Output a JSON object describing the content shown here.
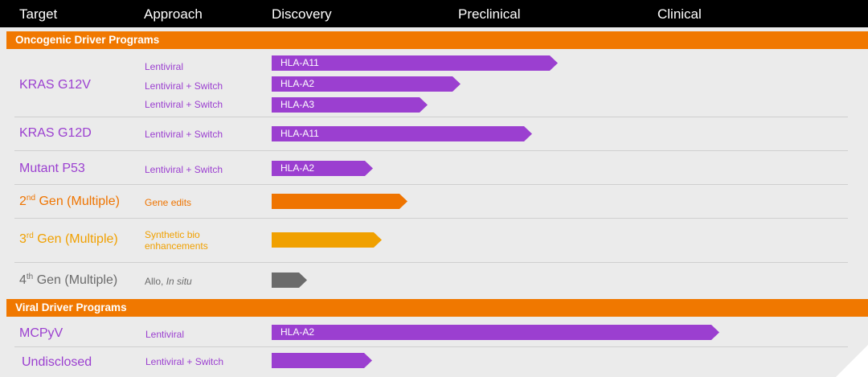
{
  "header": {
    "col_target": "Target",
    "col_approach": "Approach",
    "col_discovery": "Discovery",
    "col_preclinical": "Preclinical",
    "col_clinical": "Clinical"
  },
  "sections": {
    "oncogenic": {
      "label": "Oncogenic Driver Programs"
    },
    "viral": {
      "label": "Viral Driver Programs"
    }
  },
  "rows": {
    "kras_g12v": {
      "target": "KRAS G12V",
      "programs": [
        {
          "approach": "Lentiviral",
          "hla": "HLA-A11"
        },
        {
          "approach": "Lentiviral + Switch",
          "hla": "HLA-A2"
        },
        {
          "approach": "Lentiviral + Switch",
          "hla": "HLA-A3"
        }
      ]
    },
    "kras_g12d": {
      "target": "KRAS G12D",
      "approach": "Lentiviral + Switch",
      "hla": "HLA-A11"
    },
    "mutant_p53": {
      "target": "Mutant P53",
      "approach": "Lentiviral + Switch",
      "hla": "HLA-A2"
    },
    "gen2": {
      "ordinal": "2",
      "ordinal_suffix": "nd",
      "target_rest": " Gen (Multiple)",
      "approach": "Gene edits"
    },
    "gen3": {
      "ordinal": "3",
      "ordinal_suffix": "rd",
      "target_rest": " Gen (Multiple)",
      "approach_line1": "Synthetic bio",
      "approach_line2": "enhancements"
    },
    "gen4": {
      "ordinal": "4",
      "ordinal_suffix": "th",
      "target_rest": " Gen (Multiple)",
      "approach_prefix": "Allo, ",
      "approach_italic": "In situ"
    },
    "mcpyv": {
      "target": "MCPyV",
      "approach": "Lentiviral",
      "hla": "HLA-A2"
    },
    "undisclosed": {
      "target": "Undisclosed",
      "approach": "Lentiviral + Switch"
    }
  },
  "colors": {
    "header_bg": "#000000",
    "section_orange": "#f07800",
    "purple": "#9b3fd0",
    "orange": "#ef7400",
    "amber": "#f0a000",
    "gray": "#6b6b6b",
    "panel_bg": "#ebebeb"
  }
}
